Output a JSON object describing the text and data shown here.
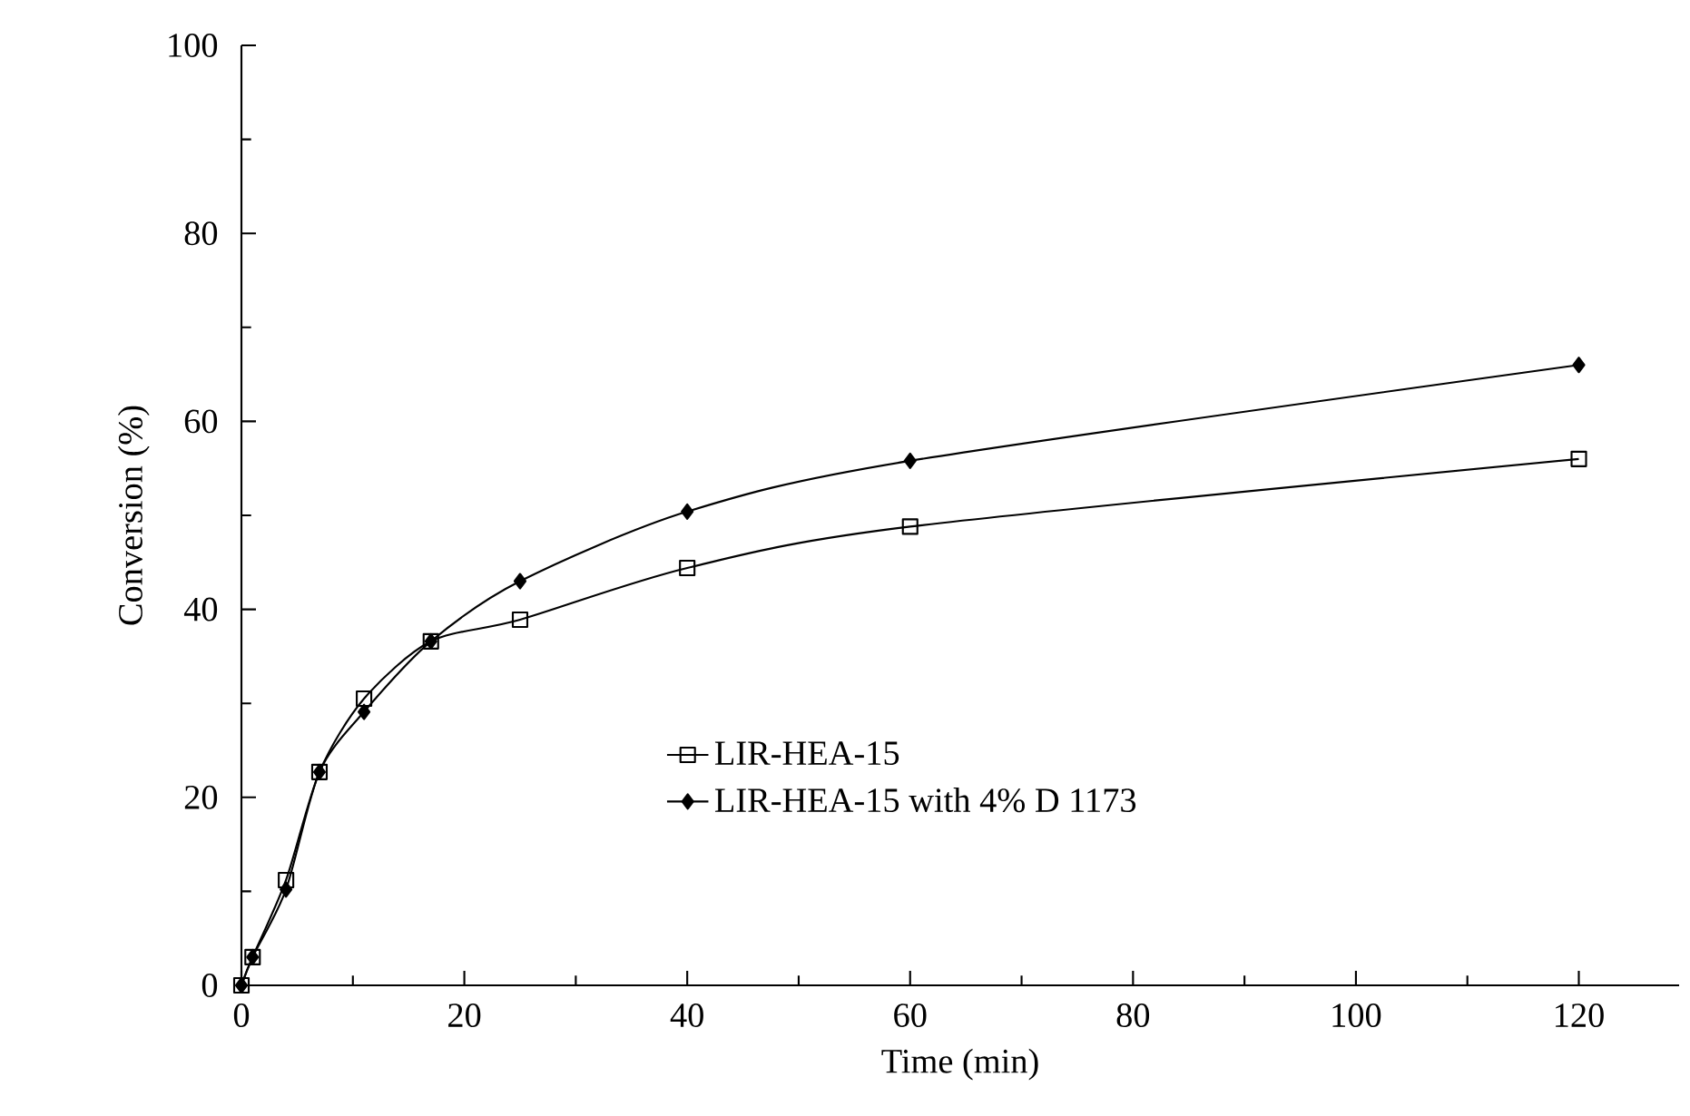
{
  "chart_data": {
    "type": "line",
    "xlabel": "Time (min)",
    "ylabel": "Conversion (%)",
    "xlim": [
      0,
      129
    ],
    "xticks": [
      0,
      20,
      40,
      60,
      80,
      100,
      120
    ],
    "ylim": [
      0,
      100
    ],
    "yticks": [
      0,
      20,
      40,
      60,
      80,
      100
    ],
    "legend": "bottom",
    "grid": false,
    "series": [
      {
        "name": "LIR-HEA-15",
        "color": "#000000",
        "marker": "square",
        "x": [
          0,
          1,
          4,
          7,
          11,
          17,
          25,
          40,
          60,
          120
        ],
        "values": [
          0,
          3,
          11.2,
          22.7,
          30.5,
          36.6,
          38.9,
          44.4,
          48.8,
          56
        ]
      },
      {
        "name": "LIR-HEA-15 with 4% D 1173",
        "color": "#000000",
        "marker": "diamond",
        "x": [
          0,
          1,
          4,
          7,
          11,
          17,
          25,
          40,
          60,
          120
        ],
        "values": [
          0,
          3,
          10.2,
          22.7,
          29.1,
          36.6,
          43.0,
          50.4,
          55.8,
          66
        ]
      }
    ]
  }
}
